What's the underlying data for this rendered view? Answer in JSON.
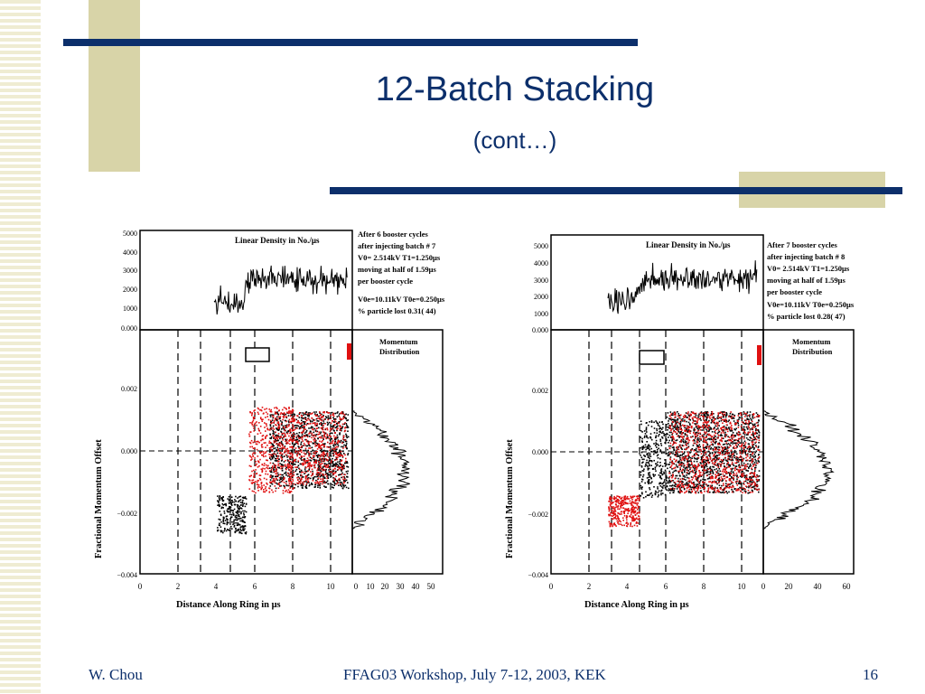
{
  "slide": {
    "title": "12-Batch Stacking",
    "subtitle": "(cont…)",
    "footer_left": "W. Chou",
    "footer_center": "FFAG03 Workshop, July 7-12, 2003, KEK",
    "footer_right": "16"
  },
  "colors": {
    "accent_navy": "#0c2f6b",
    "accent_beige": "#d8d4a8",
    "red_particles": "#e01010"
  },
  "figures": [
    {
      "density_label": "Linear Density in No./μs",
      "density_ticks": [
        "5000",
        "4000",
        "3000",
        "2000",
        "1000",
        "0.000"
      ],
      "info_lines": [
        "After 6 booster cycles",
        "after injecting batch # 7",
        "V0= 2.514kV T1=1.250μs",
        "moving at half of 1.59μs",
        "per booster cycle",
        "V0e=10.11kV T0e=0.250μs",
        "% particle lost 0.31( 44)"
      ],
      "y_axis_label": "Fractional Momentum Offset",
      "x_axis_label": "Distance Along Ring in μs",
      "y_ticks": [
        "0.002",
        "0.000",
        "−0.002",
        "−0.004"
      ],
      "x_ticks": [
        "0",
        "2",
        "4",
        "6",
        "8",
        "10"
      ],
      "momentum_label_1": "Momentum",
      "momentum_label_2": "Distribution",
      "mom_ticks": [
        "0",
        "10",
        "20",
        "30",
        "40",
        "50"
      ]
    },
    {
      "density_label": "Linear Density in No./μs",
      "density_ticks": [
        "5000",
        "4000",
        "3000",
        "2000",
        "1000",
        "0.000"
      ],
      "info_lines": [
        "After 7 booster cycles",
        "after injecting batch # 8",
        "V0= 2.514kV T1=1.250μs",
        "moving at half of 1.59μs",
        "per booster cycle",
        "V0e=10.11kV T0e=0.250μs",
        "% particle lost 0.28( 47)"
      ],
      "y_axis_label": "Fractional Momentum Offset",
      "x_axis_label": "Distance Along Ring in μs",
      "y_ticks": [
        "0.002",
        "0.000",
        "−0.002",
        "−0.004"
      ],
      "x_ticks": [
        "0",
        "2",
        "4",
        "6",
        "8",
        "10"
      ],
      "momentum_label_1": "Momentum",
      "momentum_label_2": "Distribution",
      "mom_ticks": [
        "0",
        "20",
        "40",
        "60"
      ]
    }
  ]
}
